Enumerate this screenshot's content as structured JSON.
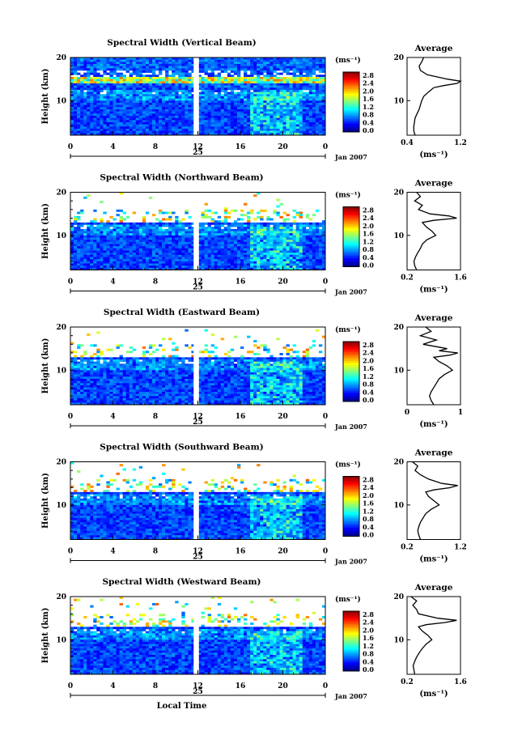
{
  "figure": {
    "xlabel": "Local Time",
    "date_label": "Jan 2007",
    "day_label": "25",
    "colorbar_unit": "(ms⁻¹)",
    "avg_title": "Average",
    "avg_xlabel": "(ms⁻¹)",
    "colormap": [
      "#000080",
      "#0000ff",
      "#0080ff",
      "#00ffff",
      "#80ff80",
      "#ffff00",
      "#ff8000",
      "#ff0000",
      "#800000"
    ]
  },
  "chart_data": [
    {
      "type": "heatmap",
      "title": "Spectral Width (Vertical Beam)",
      "ylabel": "Height (km)",
      "xlabel": "",
      "xlim": [
        0,
        24
      ],
      "xticks": [
        "0",
        "4",
        "8",
        "12",
        "16",
        "20",
        "0"
      ],
      "ylim": [
        2,
        20
      ],
      "yticks": [
        "10",
        "20"
      ],
      "colorbar": {
        "label": "(ms⁻¹)",
        "ticks": [
          "2.8",
          "2.4",
          "2.0",
          "1.6",
          "1.2",
          "0.8",
          "0.4",
          "0.0"
        ],
        "range": [
          0,
          2.8
        ]
      },
      "gap_hours": [
        11.6,
        12.1
      ],
      "average_profile": {
        "title": "Average",
        "xlabel": "(ms⁻¹)",
        "xlim": [
          0.4,
          1.2
        ],
        "xticks": [
          "0.4",
          "1.2"
        ],
        "yticks": [
          "10",
          "20"
        ],
        "heights": [
          2,
          3,
          4,
          5,
          6,
          7,
          8,
          9,
          10,
          11,
          12,
          13,
          13.5,
          14,
          14.5,
          15,
          16,
          17,
          18,
          19,
          20
        ],
        "values": [
          0.52,
          0.5,
          0.5,
          0.51,
          0.52,
          0.55,
          0.58,
          0.6,
          0.62,
          0.65,
          0.72,
          0.8,
          0.95,
          1.15,
          1.2,
          1.0,
          0.7,
          0.6,
          0.58,
          0.62,
          0.65
        ]
      }
    },
    {
      "type": "heatmap",
      "title": "Spectral Width (Northward Beam)",
      "ylabel": "Height (km)",
      "xlabel": "",
      "xlim": [
        0,
        24
      ],
      "xticks": [
        "0",
        "4",
        "8",
        "12",
        "16",
        "20",
        "0"
      ],
      "ylim": [
        2,
        20
      ],
      "yticks": [
        "10",
        "20"
      ],
      "colorbar": {
        "label": "(ms⁻¹)",
        "ticks": [
          "2.8",
          "2.4",
          "2.0",
          "1.6",
          "1.2",
          "0.8",
          "0.4",
          "0.0"
        ],
        "range": [
          0,
          2.8
        ]
      },
      "gap_hours": [
        11.6,
        12.1
      ],
      "average_profile": {
        "title": "Average",
        "xlabel": "(ms⁻¹)",
        "xlim": [
          0.2,
          1.6
        ],
        "xticks": [
          "0.2",
          "1.6"
        ],
        "yticks": [
          "10",
          "20"
        ],
        "heights": [
          2,
          3,
          4,
          5,
          6,
          7,
          8,
          9,
          10,
          11,
          12,
          13,
          13.5,
          14,
          14.5,
          15,
          16,
          17,
          18,
          19,
          20
        ],
        "values": [
          0.45,
          0.4,
          0.38,
          0.42,
          0.48,
          0.55,
          0.6,
          0.72,
          0.95,
          0.85,
          0.7,
          0.6,
          0.9,
          1.5,
          1.3,
          0.8,
          0.5,
          0.6,
          0.4,
          0.55,
          0.45
        ]
      }
    },
    {
      "type": "heatmap",
      "title": "Spectral Width (Eastward Beam)",
      "ylabel": "Height (km)",
      "xlabel": "",
      "xlim": [
        0,
        24
      ],
      "xticks": [
        "0",
        "4",
        "8",
        "12",
        "16",
        "20",
        "0"
      ],
      "ylim": [
        2,
        20
      ],
      "yticks": [
        "10",
        "20"
      ],
      "colorbar": {
        "label": "(ms⁻¹)",
        "ticks": [
          "2.8",
          "2.4",
          "2.0",
          "1.6",
          "1.2",
          "0.8",
          "0.4",
          "0.0"
        ],
        "range": [
          0,
          2.8
        ]
      },
      "gap_hours": [
        11.6,
        12.1
      ],
      "average_profile": {
        "title": "Average",
        "xlabel": "(ms⁻¹)",
        "xlim": [
          0,
          1
        ],
        "xticks": [
          "0",
          "1"
        ],
        "yticks": [
          "10",
          "20"
        ],
        "heights": [
          2,
          3,
          4,
          5,
          6,
          7,
          8,
          9,
          10,
          11,
          12,
          13,
          13.5,
          14,
          14.5,
          15,
          16,
          17,
          18,
          19,
          20
        ],
        "values": [
          0.5,
          0.45,
          0.42,
          0.45,
          0.5,
          0.55,
          0.6,
          0.7,
          0.85,
          0.75,
          0.6,
          0.5,
          0.8,
          0.95,
          0.6,
          0.75,
          0.3,
          0.55,
          0.25,
          0.45,
          0.35
        ]
      }
    },
    {
      "type": "heatmap",
      "title": "Spectral Width (Southward Beam)",
      "ylabel": "Height (km)",
      "xlabel": "",
      "xlim": [
        0,
        24
      ],
      "xticks": [
        "0",
        "4",
        "8",
        "12",
        "16",
        "20",
        "0"
      ],
      "ylim": [
        2,
        20
      ],
      "yticks": [
        "10",
        "20"
      ],
      "colorbar": {
        "label": "(ms⁻¹)",
        "ticks": [
          "2.8",
          "2.4",
          "2.0",
          "1.6",
          "1.2",
          "0.8",
          "0.4",
          "0.0"
        ],
        "range": [
          0,
          2.8
        ]
      },
      "gap_hours": [
        11.6,
        12.1
      ],
      "average_profile": {
        "title": "Average",
        "xlabel": "(ms⁻¹)",
        "xlim": [
          0.2,
          1.2
        ],
        "xticks": [
          "0.2",
          "1.2"
        ],
        "yticks": [
          "10",
          "20"
        ],
        "heights": [
          2,
          3,
          4,
          5,
          6,
          7,
          8,
          9,
          10,
          11,
          12,
          13,
          13.5,
          14,
          14.5,
          15,
          16,
          17,
          18,
          19,
          20
        ],
        "values": [
          0.45,
          0.42,
          0.4,
          0.42,
          0.45,
          0.5,
          0.55,
          0.65,
          0.8,
          0.7,
          0.6,
          0.55,
          0.7,
          1.0,
          1.15,
          0.85,
          0.6,
          0.45,
          0.35,
          0.4,
          0.3
        ]
      }
    },
    {
      "type": "heatmap",
      "title": "Spectral Width (Westward Beam)",
      "ylabel": "Height (km)",
      "xlabel": "Local Time",
      "xlim": [
        0,
        24
      ],
      "xticks": [
        "0",
        "4",
        "8",
        "12",
        "16",
        "20",
        "0"
      ],
      "ylim": [
        2,
        20
      ],
      "yticks": [
        "10",
        "20"
      ],
      "colorbar": {
        "label": "(ms⁻¹)",
        "ticks": [
          "2.8",
          "2.4",
          "2.0",
          "1.6",
          "1.2",
          "0.8",
          "0.4",
          "0.0"
        ],
        "range": [
          0,
          2.8
        ]
      },
      "gap_hours": [
        11.6,
        12.1
      ],
      "average_profile": {
        "title": "Average",
        "xlabel": "(ms⁻¹)",
        "xlim": [
          0.2,
          1.6
        ],
        "xticks": [
          "0.2",
          "1.6"
        ],
        "yticks": [
          "10",
          "20"
        ],
        "heights": [
          2,
          3,
          4,
          5,
          6,
          7,
          8,
          9,
          10,
          11,
          12,
          13,
          13.5,
          14,
          14.5,
          15,
          16,
          17,
          18,
          19,
          20
        ],
        "values": [
          0.4,
          0.38,
          0.36,
          0.4,
          0.45,
          0.52,
          0.6,
          0.7,
          0.85,
          0.75,
          0.6,
          0.5,
          0.7,
          1.2,
          1.5,
          1.0,
          0.5,
          0.45,
          0.35,
          0.45,
          0.3
        ]
      }
    }
  ]
}
